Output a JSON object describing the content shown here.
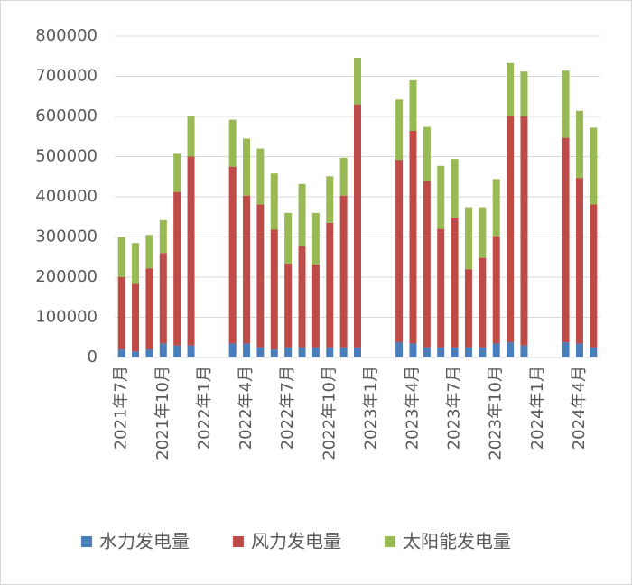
{
  "chart_data": {
    "type": "stacked_bar",
    "categories": [
      "2021年7月",
      null,
      null,
      "2021年10月",
      null,
      null,
      "2022年1月",
      null,
      null,
      "2022年4月",
      null,
      null,
      "2022年7月",
      null,
      null,
      "2022年10月",
      null,
      null,
      "2023年1月",
      null,
      null,
      "2023年4月",
      null,
      null,
      "2023年7月",
      null,
      null,
      "2023年10月",
      null,
      null,
      "2024年1月",
      null,
      null,
      "2024年4月",
      null
    ],
    "series": [
      {
        "name": "水力发电量",
        "color": "#4a7ebb",
        "values": [
          20000,
          15000,
          20000,
          35000,
          30000,
          30000,
          null,
          null,
          35000,
          35000,
          25000,
          20000,
          25000,
          25000,
          25000,
          25000,
          25000,
          25000,
          null,
          null,
          38000,
          35000,
          25000,
          25000,
          25000,
          25000,
          25000,
          35000,
          38000,
          30000,
          null,
          null,
          38000,
          35000,
          25000
        ]
      },
      {
        "name": "风力发电量",
        "color": "#be4b48",
        "values": [
          180000,
          168000,
          202000,
          225000,
          382000,
          470000,
          null,
          null,
          440000,
          368000,
          356000,
          298000,
          209000,
          253000,
          207000,
          310000,
          378000,
          605000,
          null,
          null,
          454000,
          529000,
          415000,
          295000,
          323000,
          195000,
          223000,
          267000,
          564000,
          570000,
          null,
          null,
          509000,
          412000,
          356000
        ]
      },
      {
        "name": "太阳能发电量",
        "color": "#98b954",
        "values": [
          100000,
          102000,
          83000,
          82000,
          95000,
          102000,
          null,
          null,
          117000,
          142000,
          139000,
          140000,
          126000,
          154000,
          128000,
          116000,
          94000,
          116000,
          null,
          null,
          150000,
          126000,
          134000,
          157000,
          146000,
          154000,
          126000,
          142000,
          131000,
          112000,
          null,
          null,
          167000,
          167000,
          191000
        ]
      }
    ],
    "ylim": [
      0,
      800000
    ],
    "yticks": [
      0,
      100000,
      200000,
      300000,
      400000,
      500000,
      600000,
      700000,
      800000
    ],
    "grid": true
  }
}
